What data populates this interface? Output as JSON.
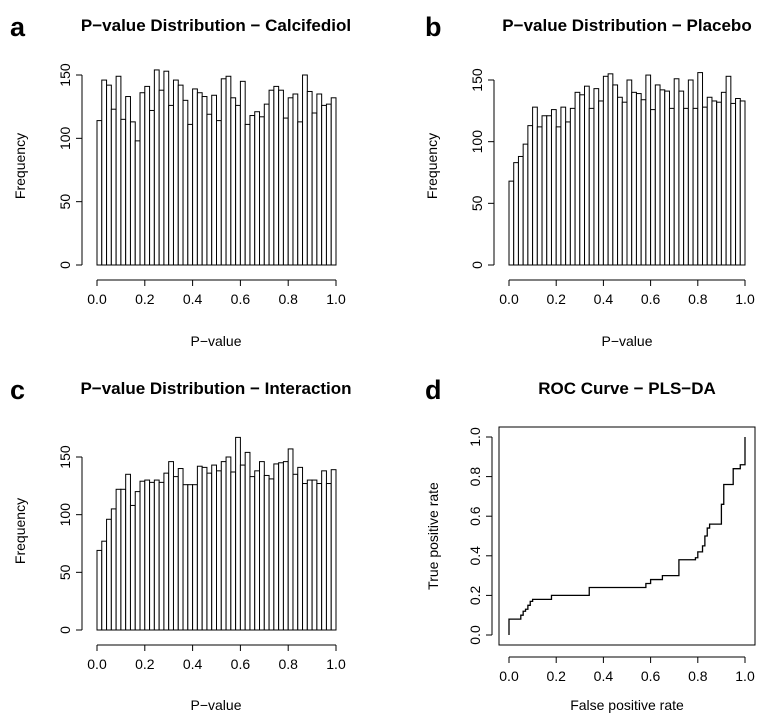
{
  "chart_data": [
    {
      "panel": "a",
      "type": "bar",
      "title": "P−value Distribution − Calcifediol",
      "xlabel": "P−value",
      "ylabel": "Frequency",
      "xlim": [
        0,
        1
      ],
      "ylim": [
        0,
        150
      ],
      "xticks": [
        "0.0",
        "0.2",
        "0.4",
        "0.6",
        "0.8",
        "1.0"
      ],
      "yticks": [
        "0",
        "50",
        "100",
        "150"
      ],
      "bin_width": 0.02,
      "values": [
        114,
        146,
        142,
        123,
        149,
        115,
        133,
        113,
        98,
        136,
        141,
        122,
        154,
        138,
        153,
        126,
        146,
        142,
        130,
        111,
        139,
        136,
        133,
        119,
        134,
        114,
        147,
        149,
        132,
        126,
        145,
        111,
        118,
        121,
        117,
        127,
        138,
        141,
        138,
        116,
        132,
        135,
        113,
        150,
        137,
        120,
        135,
        126,
        127,
        132
      ]
    },
    {
      "panel": "b",
      "type": "bar",
      "title": "P−value Distribution − Placebo",
      "xlabel": "P−value",
      "ylabel": "Frequency",
      "xlim": [
        0,
        1
      ],
      "ylim": [
        0,
        150
      ],
      "xticks": [
        "0.0",
        "0.2",
        "0.4",
        "0.6",
        "0.8",
        "1.0"
      ],
      "yticks": [
        "0",
        "50",
        "100",
        "150"
      ],
      "bin_width": 0.02,
      "values": [
        68,
        83,
        88,
        98,
        113,
        128,
        112,
        121,
        121,
        126,
        112,
        128,
        116,
        127,
        140,
        138,
        145,
        127,
        143,
        133,
        153,
        155,
        146,
        136,
        132,
        150,
        140,
        139,
        134,
        154,
        126,
        146,
        142,
        141,
        127,
        151,
        141,
        127,
        150,
        127,
        156,
        128,
        136,
        133,
        132,
        140,
        153,
        131,
        135,
        133
      ]
    },
    {
      "panel": "c",
      "type": "bar",
      "title": "P−value Distribution − Interaction",
      "xlabel": "P−value",
      "ylabel": "Frequency",
      "xlim": [
        0,
        1
      ],
      "ylim": [
        0,
        150
      ],
      "xticks": [
        "0.0",
        "0.2",
        "0.4",
        "0.6",
        "0.8",
        "1.0"
      ],
      "yticks": [
        "0",
        "50",
        "100",
        "150"
      ],
      "bin_width": 0.02,
      "values": [
        69,
        77,
        96,
        105,
        122,
        122,
        135,
        108,
        120,
        129,
        130,
        128,
        130,
        128,
        136,
        146,
        133,
        140,
        126,
        126,
        126,
        142,
        141,
        136,
        143,
        138,
        146,
        150,
        137,
        167,
        143,
        154,
        133,
        138,
        146,
        134,
        131,
        144,
        145,
        146,
        157,
        135,
        141,
        127,
        130,
        130,
        127,
        138,
        127,
        139
      ]
    },
    {
      "panel": "d",
      "type": "line",
      "title": "ROC Curve − PLS−DA",
      "xlabel": "False positive rate",
      "ylabel": "True positive rate",
      "xlim": [
        0,
        1
      ],
      "ylim": [
        0,
        1
      ],
      "xticks": [
        "0.0",
        "0.2",
        "0.4",
        "0.6",
        "0.8",
        "1.0"
      ],
      "yticks": [
        "0.0",
        "0.2",
        "0.4",
        "0.6",
        "0.8",
        "1.0"
      ],
      "x": [
        0,
        0,
        0.05,
        0.05,
        0.06,
        0.06,
        0.07,
        0.07,
        0.08,
        0.08,
        0.09,
        0.09,
        0.1,
        0.1,
        0.18,
        0.18,
        0.34,
        0.34,
        0.58,
        0.58,
        0.6,
        0.6,
        0.65,
        0.65,
        0.72,
        0.72,
        0.79,
        0.79,
        0.8,
        0.8,
        0.82,
        0.82,
        0.83,
        0.83,
        0.84,
        0.84,
        0.85,
        0.85,
        0.9,
        0.9,
        0.91,
        0.91,
        0.92,
        0.92,
        0.95,
        0.95,
        0.98,
        0.98,
        1.0,
        1.0
      ],
      "y": [
        0,
        0.08,
        0.08,
        0.1,
        0.1,
        0.12,
        0.12,
        0.13,
        0.13,
        0.15,
        0.15,
        0.17,
        0.17,
        0.18,
        0.18,
        0.2,
        0.2,
        0.24,
        0.24,
        0.26,
        0.26,
        0.28,
        0.28,
        0.3,
        0.3,
        0.38,
        0.38,
        0.39,
        0.39,
        0.42,
        0.42,
        0.45,
        0.45,
        0.5,
        0.5,
        0.54,
        0.54,
        0.56,
        0.56,
        0.66,
        0.66,
        0.76,
        0.76,
        0.76,
        0.76,
        0.84,
        0.84,
        0.86,
        0.86,
        1.0
      ]
    }
  ]
}
